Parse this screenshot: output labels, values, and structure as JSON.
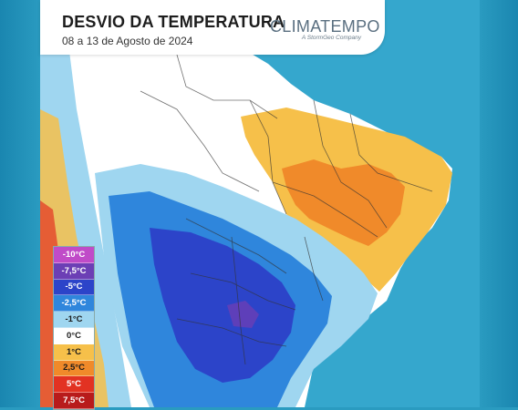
{
  "header": {
    "title": "DESVIO DA TEMPERATURA",
    "subtitle": "08 a 13 de Agosto de 2024"
  },
  "logo": {
    "name": "CLIMATEMPO",
    "tagline": "A StormGeo Company"
  },
  "legend": {
    "items": [
      {
        "label": "-10°C",
        "color": "#c04bc8",
        "text": "#ffffff"
      },
      {
        "label": "-7,5°C",
        "color": "#6c3fb5",
        "text": "#ffffff"
      },
      {
        "label": "-5°C",
        "color": "#2c44c9",
        "text": "#ffffff"
      },
      {
        "label": "-2,5°C",
        "color": "#2f86dc",
        "text": "#ffffff"
      },
      {
        "label": "-1°C",
        "color": "#9fd6f0",
        "text": "#1b1b1b"
      },
      {
        "label": "0°C",
        "color": "#ffffff",
        "text": "#1b1b1b"
      },
      {
        "label": "1°C",
        "color": "#f6c04a",
        "text": "#1b1b1b"
      },
      {
        "label": "2,5°C",
        "color": "#f08a2a",
        "text": "#1b1b1b"
      },
      {
        "label": "5°C",
        "color": "#e23222",
        "text": "#ffffff"
      },
      {
        "label": "7,5°C",
        "color": "#b81b1b",
        "text": "#ffffff"
      }
    ]
  }
}
